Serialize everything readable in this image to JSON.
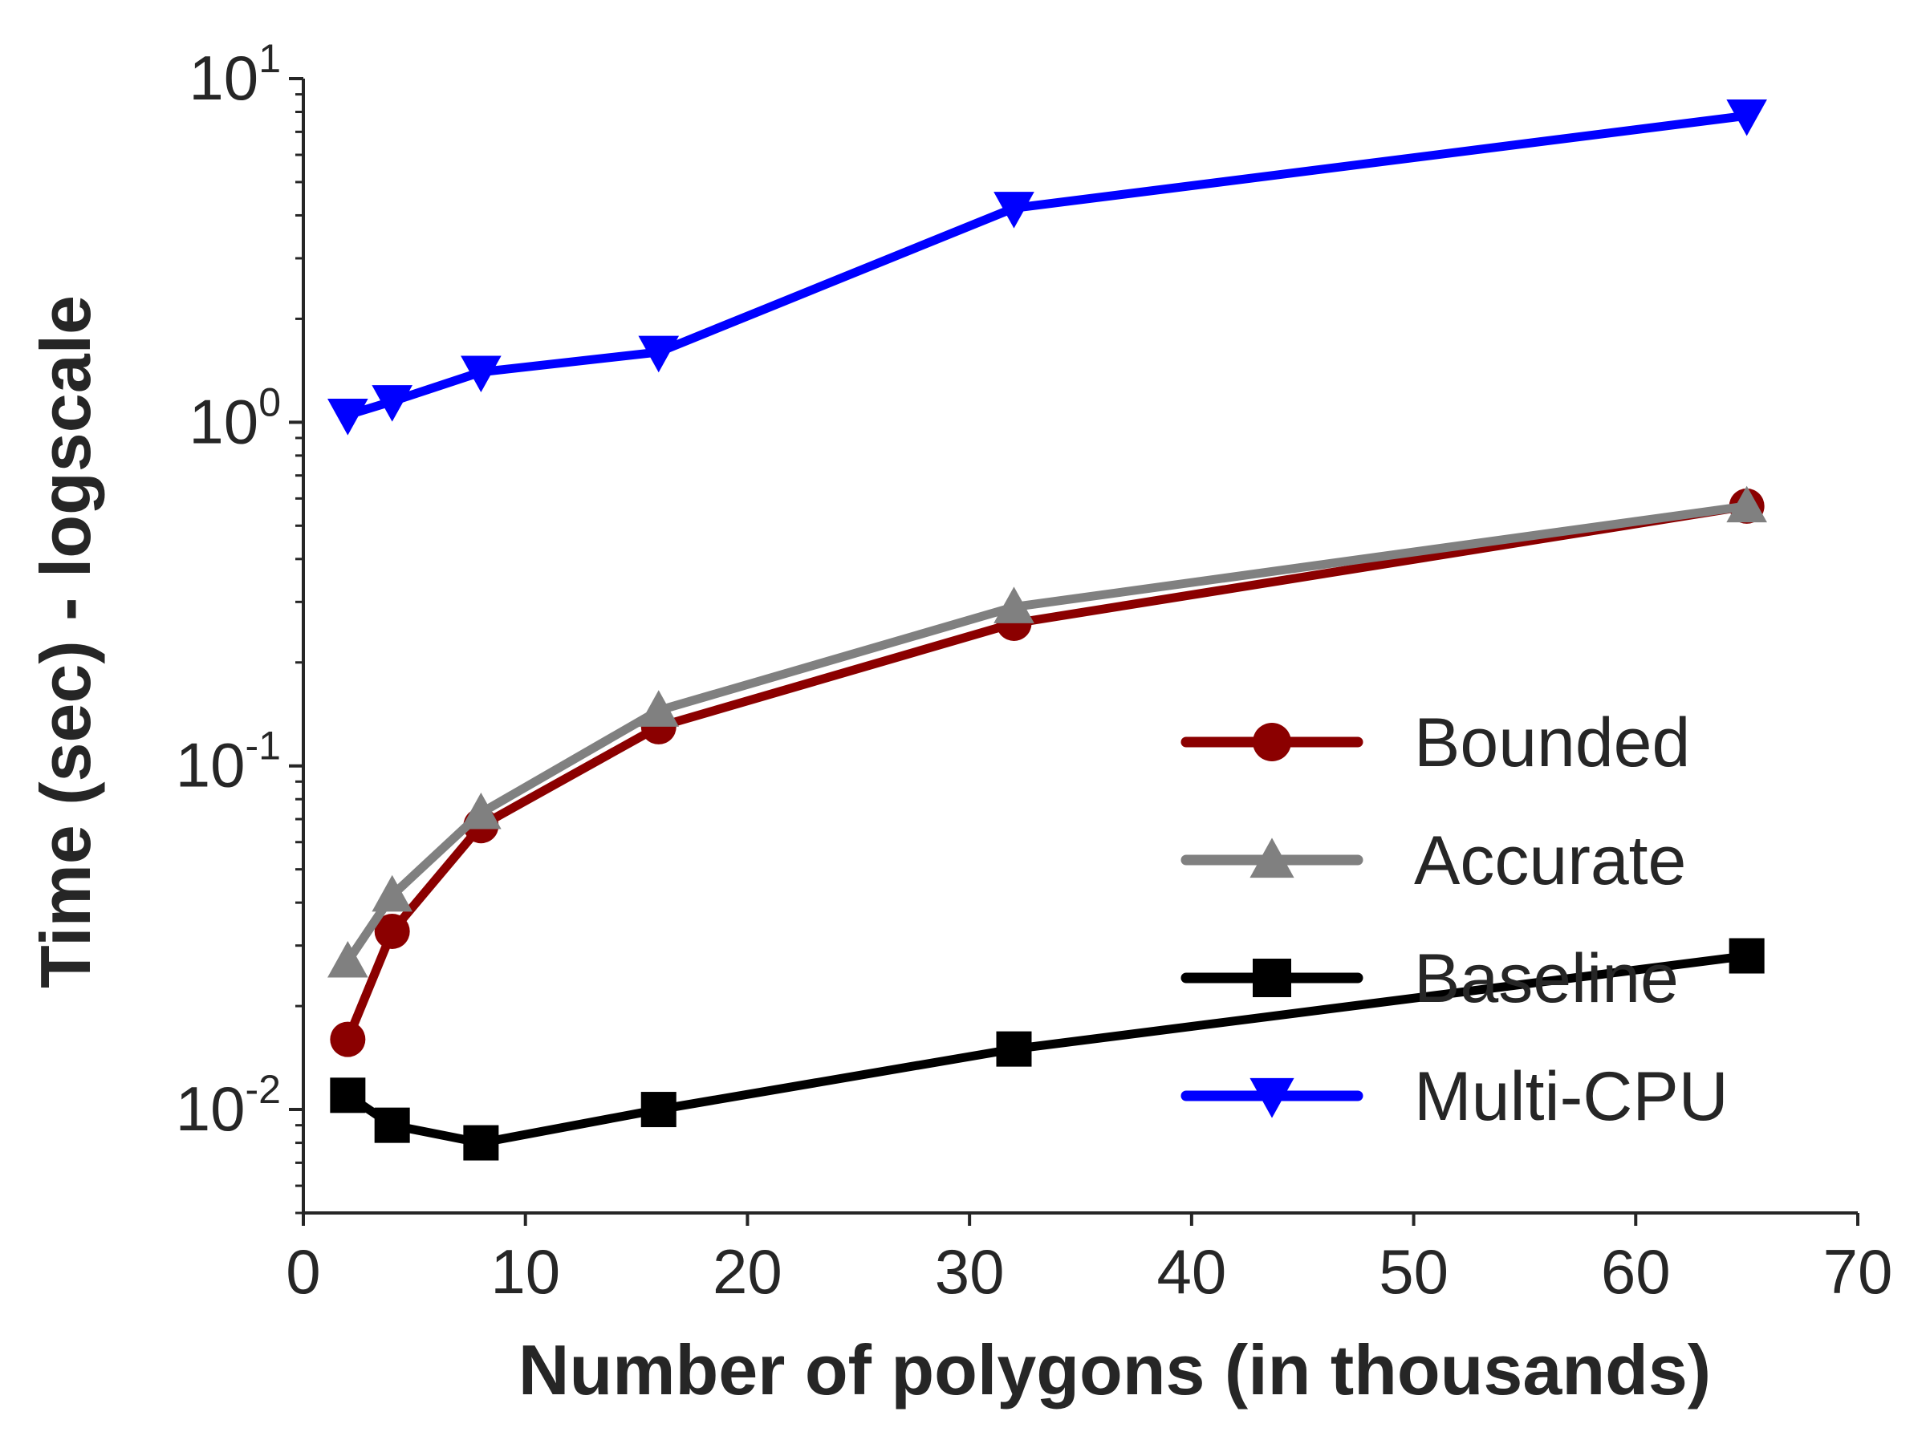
{
  "chart_data": {
    "type": "line",
    "title": "",
    "xlabel": "Number of polygons (in thousands)",
    "ylabel": "Time (sec) - logscale",
    "yscale": "log",
    "xlim": [
      0,
      70
    ],
    "ylim": [
      0.005,
      10
    ],
    "grid": false,
    "legend_position": "bottom-right",
    "x_ticks": [
      0,
      10,
      20,
      30,
      40,
      50,
      60,
      70
    ],
    "y_ticks": [
      {
        "value": 0.01,
        "base": "10",
        "exp": "-2"
      },
      {
        "value": 0.1,
        "base": "10",
        "exp": "-1"
      },
      {
        "value": 1,
        "base": "10",
        "exp": "0"
      },
      {
        "value": 10,
        "base": "10",
        "exp": "1"
      }
    ],
    "series": [
      {
        "name": "Bounded",
        "color": "#8b0000",
        "marker": "circle",
        "x": [
          2,
          4,
          8,
          16,
          32,
          65
        ],
        "y": [
          0.016,
          0.033,
          0.067,
          0.13,
          0.26,
          0.57
        ]
      },
      {
        "name": "Accurate",
        "color": "#808080",
        "marker": "triangle-up",
        "x": [
          2,
          4,
          8,
          16,
          32,
          65
        ],
        "y": [
          0.027,
          0.042,
          0.073,
          0.145,
          0.29,
          0.57
        ]
      },
      {
        "name": "Baseline",
        "color": "#000000",
        "marker": "square",
        "x": [
          2,
          4,
          8,
          16,
          32,
          65
        ],
        "y": [
          0.011,
          0.009,
          0.008,
          0.01,
          0.015,
          0.028
        ]
      },
      {
        "name": "Multi-CPU",
        "color": "#0000ff",
        "marker": "triangle-down",
        "x": [
          2,
          4,
          8,
          16,
          32,
          65
        ],
        "y": [
          1.05,
          1.15,
          1.4,
          1.6,
          4.2,
          7.8
        ]
      }
    ]
  }
}
